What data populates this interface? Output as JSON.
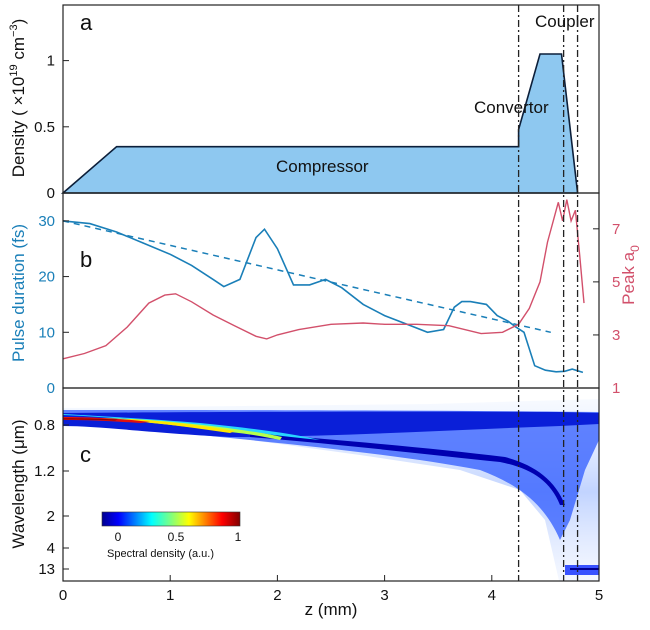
{
  "colors": {
    "area_fill": "#8ec8f0",
    "area_stroke": "#0c1f3a",
    "pulse": "#1a7fb8",
    "peak": "#d2506b",
    "axes": "#222222",
    "vline": "#222222"
  },
  "chart_data": [
    {
      "panel": "a",
      "type": "area",
      "title": "",
      "xlabel": "z (mm)",
      "ylabel": "Density (×10¹⁹ cm⁻³)",
      "ylabel_parts": {
        "pre": "Density ( ×10",
        "exp1": "19",
        "mid": " cm",
        "exp2": "−3",
        "post": ")"
      },
      "xlim": [
        0,
        5
      ],
      "ylim": [
        0,
        1.42
      ],
      "yticks": [
        0,
        0.5,
        1
      ],
      "ytick_labels": [
        "0",
        "0.5",
        "1"
      ],
      "x": [
        0,
        0.5,
        4.25,
        4.25,
        4.45,
        4.65,
        4.8
      ],
      "y": [
        0,
        0.35,
        0.35,
        0.48,
        1.05,
        1.05,
        0
      ],
      "annotations": [
        "Compressor",
        "Convertor",
        "Coupler"
      ]
    },
    {
      "panel": "b",
      "type": "line",
      "xlabel": "z (mm)",
      "ylabel_left": "Pulse duration (fs)",
      "ylabel_right": "Peak a0",
      "ylabel_right_parts": {
        "base": "Peak a",
        "sub": "0"
      },
      "xlim": [
        0,
        5
      ],
      "ylim_left": [
        0,
        35
      ],
      "yticks_left": [
        0,
        10,
        20,
        30
      ],
      "ytick_labels_left": [
        "0",
        "10",
        "20",
        "30"
      ],
      "ylim_right": [
        1,
        8.35
      ],
      "yticks_right": [
        1,
        3,
        5,
        7
      ],
      "ytick_labels_right": [
        "1",
        "3",
        "5",
        "7"
      ],
      "series": [
        {
          "name": "Pulse duration",
          "axis": "left",
          "style": "solid",
          "x": [
            0,
            0.25,
            0.5,
            0.75,
            1.0,
            1.2,
            1.4,
            1.5,
            1.65,
            1.8,
            1.88,
            2.0,
            2.15,
            2.3,
            2.45,
            2.6,
            2.8,
            3.0,
            3.2,
            3.4,
            3.55,
            3.65,
            3.72,
            3.8,
            3.95,
            4.05,
            4.15,
            4.22,
            4.3,
            4.4,
            4.5,
            4.6,
            4.68,
            4.75,
            4.85
          ],
          "y": [
            30,
            29.5,
            28,
            26,
            24,
            22,
            19.5,
            18.2,
            19.5,
            27,
            28.5,
            25,
            18.5,
            18.5,
            19.5,
            18,
            15,
            13,
            11.5,
            10,
            10.5,
            14.5,
            15.5,
            15.5,
            15,
            13,
            12,
            11,
            10,
            4,
            3.2,
            2.9,
            3.0,
            3.4,
            2.8
          ]
        },
        {
          "name": "Linear trend",
          "axis": "left",
          "style": "dashed",
          "x": [
            0,
            4.55
          ],
          "y": [
            30,
            10
          ]
        },
        {
          "name": "Peak a0",
          "axis": "right",
          "style": "solid",
          "x": [
            0,
            0.2,
            0.4,
            0.6,
            0.8,
            0.95,
            1.05,
            1.2,
            1.4,
            1.6,
            1.8,
            1.9,
            2.0,
            2.2,
            2.5,
            2.8,
            3.0,
            3.3,
            3.6,
            3.9,
            4.1,
            4.25,
            4.35,
            4.45,
            4.52,
            4.58,
            4.62,
            4.66,
            4.7,
            4.74,
            4.78,
            4.82,
            4.86
          ],
          "y": [
            2.1,
            2.3,
            2.6,
            3.3,
            4.2,
            4.5,
            4.55,
            4.25,
            3.75,
            3.35,
            2.95,
            2.85,
            3.0,
            3.2,
            3.4,
            3.45,
            3.4,
            3.4,
            3.35,
            3.05,
            3.1,
            3.4,
            4.0,
            5.0,
            6.5,
            7.4,
            8.0,
            7.3,
            8.1,
            7.3,
            7.7,
            6.0,
            4.2
          ]
        }
      ]
    },
    {
      "panel": "c",
      "type": "heatmap",
      "xlabel": "z (mm)",
      "ylabel": "Wavelength (μm)",
      "xlim": [
        0,
        5
      ],
      "xticks": [
        0,
        1,
        2,
        3,
        4,
        5
      ],
      "xtick_labels": [
        "0",
        "1",
        "2",
        "3",
        "4",
        "5"
      ],
      "yticks": [
        0.8,
        1.2,
        2,
        4,
        13
      ],
      "ytick_labels": [
        "0.8",
        "1.2",
        "2",
        "4",
        "13"
      ],
      "colorbar": {
        "label": "Spectral density (a.u.)",
        "ticks": [
          0,
          0.5,
          1
        ],
        "tick_labels": [
          "0",
          "0.5",
          "1"
        ],
        "colormap": "jet"
      }
    }
  ],
  "vertical_lines_z": [
    4.25,
    4.67,
    4.8
  ]
}
